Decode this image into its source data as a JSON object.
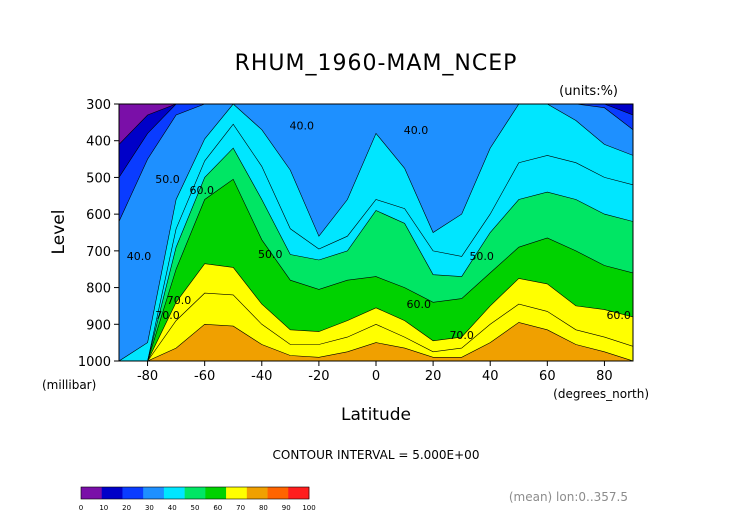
{
  "chart_data": {
    "type": "contour",
    "title": "RHUM_1960-MAM_NCEP",
    "units_label": "(units:%)",
    "xlabel": "Latitude",
    "ylabel": "Level",
    "x_unit_label": "(degrees_north)",
    "y_unit_label": "(millibar)",
    "xlim": [
      -90,
      90
    ],
    "ylim": [
      1000,
      300
    ],
    "x_ticks": [
      -80,
      -60,
      -40,
      -20,
      0,
      20,
      40,
      60,
      80
    ],
    "y_ticks": [
      300,
      400,
      500,
      600,
      700,
      800,
      900,
      1000
    ],
    "contour_interval_text": "CONTOUR INTERVAL = 5.000E+00",
    "mean_note": "(mean) lon:0..357.5",
    "colorbar": {
      "ticks": [
        0,
        10,
        20,
        30,
        40,
        50,
        60,
        70,
        80,
        90,
        100
      ],
      "colors": [
        "#7a0fa8",
        "#0000c8",
        "#0a3cff",
        "#1e90ff",
        "#00e6ff",
        "#00e664",
        "#00d200",
        "#ffff00",
        "#f0a000",
        "#ff6400",
        "#ff1e1e"
      ]
    },
    "contour_labels": [
      {
        "text": "40.0",
        "lat": -26,
        "lev": 370
      },
      {
        "text": "40.0",
        "lat": 14,
        "lev": 382
      },
      {
        "text": "50.0",
        "lat": -73,
        "lev": 515
      },
      {
        "text": "60.0",
        "lat": -61,
        "lev": 545
      },
      {
        "text": "50.0",
        "lat": -37,
        "lev": 720
      },
      {
        "text": "50.0",
        "lat": 37,
        "lev": 725
      },
      {
        "text": "40.0",
        "lat": -83,
        "lev": 725
      },
      {
        "text": "70.0",
        "lat": -69,
        "lev": 845
      },
      {
        "text": "70.0",
        "lat": -73,
        "lev": 885
      },
      {
        "text": "60.0",
        "lat": 15,
        "lev": 855
      },
      {
        "text": "70.0",
        "lat": 30,
        "lev": 940
      },
      {
        "text": "60.0",
        "lat": 85,
        "lev": 885
      }
    ],
    "level_curves": [
      {
        "value": 100,
        "lat": [
          -90,
          90
        ],
        "lev": [
          1000,
          1000
        ]
      },
      {
        "value": 80,
        "lat": [
          -90,
          -80,
          -70,
          -60,
          -50,
          -40,
          -30,
          -20,
          -10,
          0,
          10,
          20,
          30,
          40,
          50,
          60,
          70,
          80,
          90
        ],
        "lev": [
          1000,
          1000,
          965,
          900,
          905,
          955,
          985,
          990,
          975,
          950,
          965,
          990,
          990,
          950,
          895,
          915,
          955,
          975,
          1000
        ]
      },
      {
        "value": 75,
        "lat": [
          -90,
          -80,
          -70,
          -60,
          -50,
          -40,
          -30,
          -20,
          -10,
          0,
          10,
          20,
          30,
          40,
          50,
          60,
          70,
          80,
          90
        ],
        "lev": [
          1000,
          1000,
          890,
          815,
          820,
          900,
          955,
          955,
          935,
          900,
          935,
          975,
          965,
          900,
          845,
          865,
          915,
          935,
          960
        ]
      },
      {
        "value": 70,
        "lat": [
          -90,
          -80,
          -70,
          -60,
          -50,
          -40,
          -30,
          -20,
          -10,
          0,
          10,
          20,
          30,
          40,
          50,
          60,
          70,
          80,
          90
        ],
        "lev": [
          1000,
          1000,
          840,
          735,
          745,
          845,
          915,
          920,
          890,
          855,
          890,
          945,
          935,
          850,
          775,
          790,
          850,
          860,
          880
        ]
      },
      {
        "value": 60,
        "lat": [
          -90,
          -80,
          -70,
          -60,
          -50,
          -40,
          -30,
          -20,
          -10,
          0,
          10,
          20,
          30,
          40,
          50,
          60,
          70,
          80,
          90
        ],
        "lev": [
          1000,
          1000,
          750,
          560,
          505,
          670,
          780,
          805,
          780,
          770,
          800,
          840,
          830,
          760,
          690,
          665,
          700,
          740,
          760
        ]
      },
      {
        "value": 50,
        "lat": [
          -90,
          -80,
          -70,
          -60,
          -50,
          -40,
          -30,
          -20,
          -10,
          0,
          10,
          20,
          30,
          40,
          50,
          60,
          70,
          80,
          90
        ],
        "lev": [
          1000,
          1000,
          690,
          500,
          420,
          560,
          710,
          725,
          700,
          590,
          625,
          765,
          770,
          650,
          560,
          540,
          560,
          600,
          620
        ]
      },
      {
        "value": 45,
        "lat": [
          -90,
          -80,
          -70,
          -60,
          -50,
          -40,
          -30,
          -20,
          -10,
          0,
          10,
          20,
          30,
          40,
          50,
          60,
          70,
          80,
          90
        ],
        "lev": [
          1000,
          1000,
          640,
          455,
          355,
          470,
          640,
          695,
          660,
          560,
          585,
          700,
          715,
          600,
          460,
          440,
          460,
          500,
          520
        ]
      },
      {
        "value": 40,
        "lat": [
          -90,
          -80,
          -70,
          -60,
          -50,
          -40,
          -30,
          -20,
          -10,
          0,
          10,
          20,
          30,
          40,
          50,
          60,
          70,
          80,
          90
        ],
        "lev": [
          1000,
          950,
          560,
          395,
          300,
          370,
          480,
          660,
          560,
          380,
          475,
          650,
          600,
          420,
          300,
          300,
          345,
          410,
          440
        ]
      },
      {
        "value": 30,
        "lat": [
          -90,
          -80,
          -70,
          -60,
          -50,
          -40,
          -30,
          -20,
          -10,
          0,
          10,
          20,
          30,
          40,
          50,
          60,
          70,
          80,
          90
        ],
        "lev": [
          620,
          450,
          330,
          300,
          300,
          300,
          300,
          300,
          300,
          300,
          300,
          300,
          300,
          300,
          300,
          300,
          300,
          310,
          370
        ]
      },
      {
        "value": 20,
        "lat": [
          -90,
          -80,
          -70,
          -60,
          -50,
          -40,
          -30,
          -20,
          -10,
          0,
          10,
          20,
          30,
          40,
          50,
          60,
          70,
          80,
          90
        ],
        "lev": [
          500,
          380,
          300,
          300,
          300,
          300,
          300,
          300,
          300,
          300,
          300,
          300,
          300,
          300,
          300,
          300,
          300,
          300,
          330
        ]
      },
      {
        "value": 10,
        "lat": [
          -90,
          -80,
          -70,
          -60,
          -50,
          -40,
          -30,
          -20,
          -10,
          0,
          10,
          20,
          30,
          40,
          50,
          60,
          70,
          80,
          90
        ],
        "lev": [
          410,
          330,
          300,
          300,
          300,
          300,
          300,
          300,
          300,
          300,
          300,
          300,
          300,
          300,
          300,
          300,
          300,
          300,
          300
        ]
      }
    ]
  }
}
